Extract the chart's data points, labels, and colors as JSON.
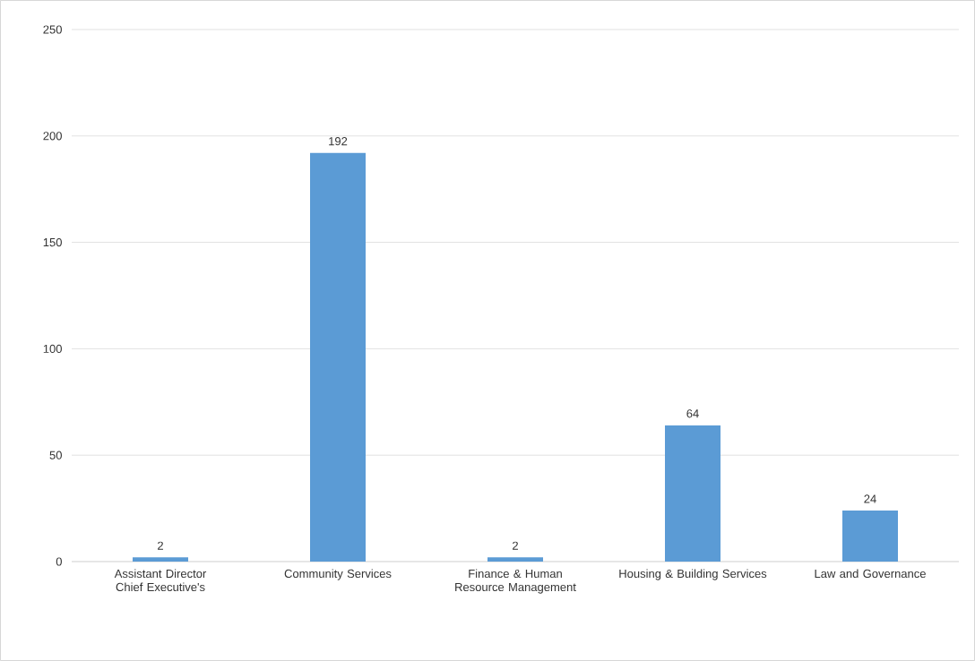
{
  "chart_data": {
    "type": "bar",
    "categories": [
      "Assistant Director Chief Executive's",
      "Community Services",
      "Finance & Human Resource Management",
      "Housing & Building Services",
      "Law and Governance"
    ],
    "values": [
      2,
      192,
      2,
      64,
      24
    ],
    "color": "#5b9bd5",
    "ylim": [
      0,
      250
    ],
    "yticks": [
      0,
      50,
      100,
      150,
      200,
      250
    ],
    "grid": "y",
    "data_labels": true
  }
}
